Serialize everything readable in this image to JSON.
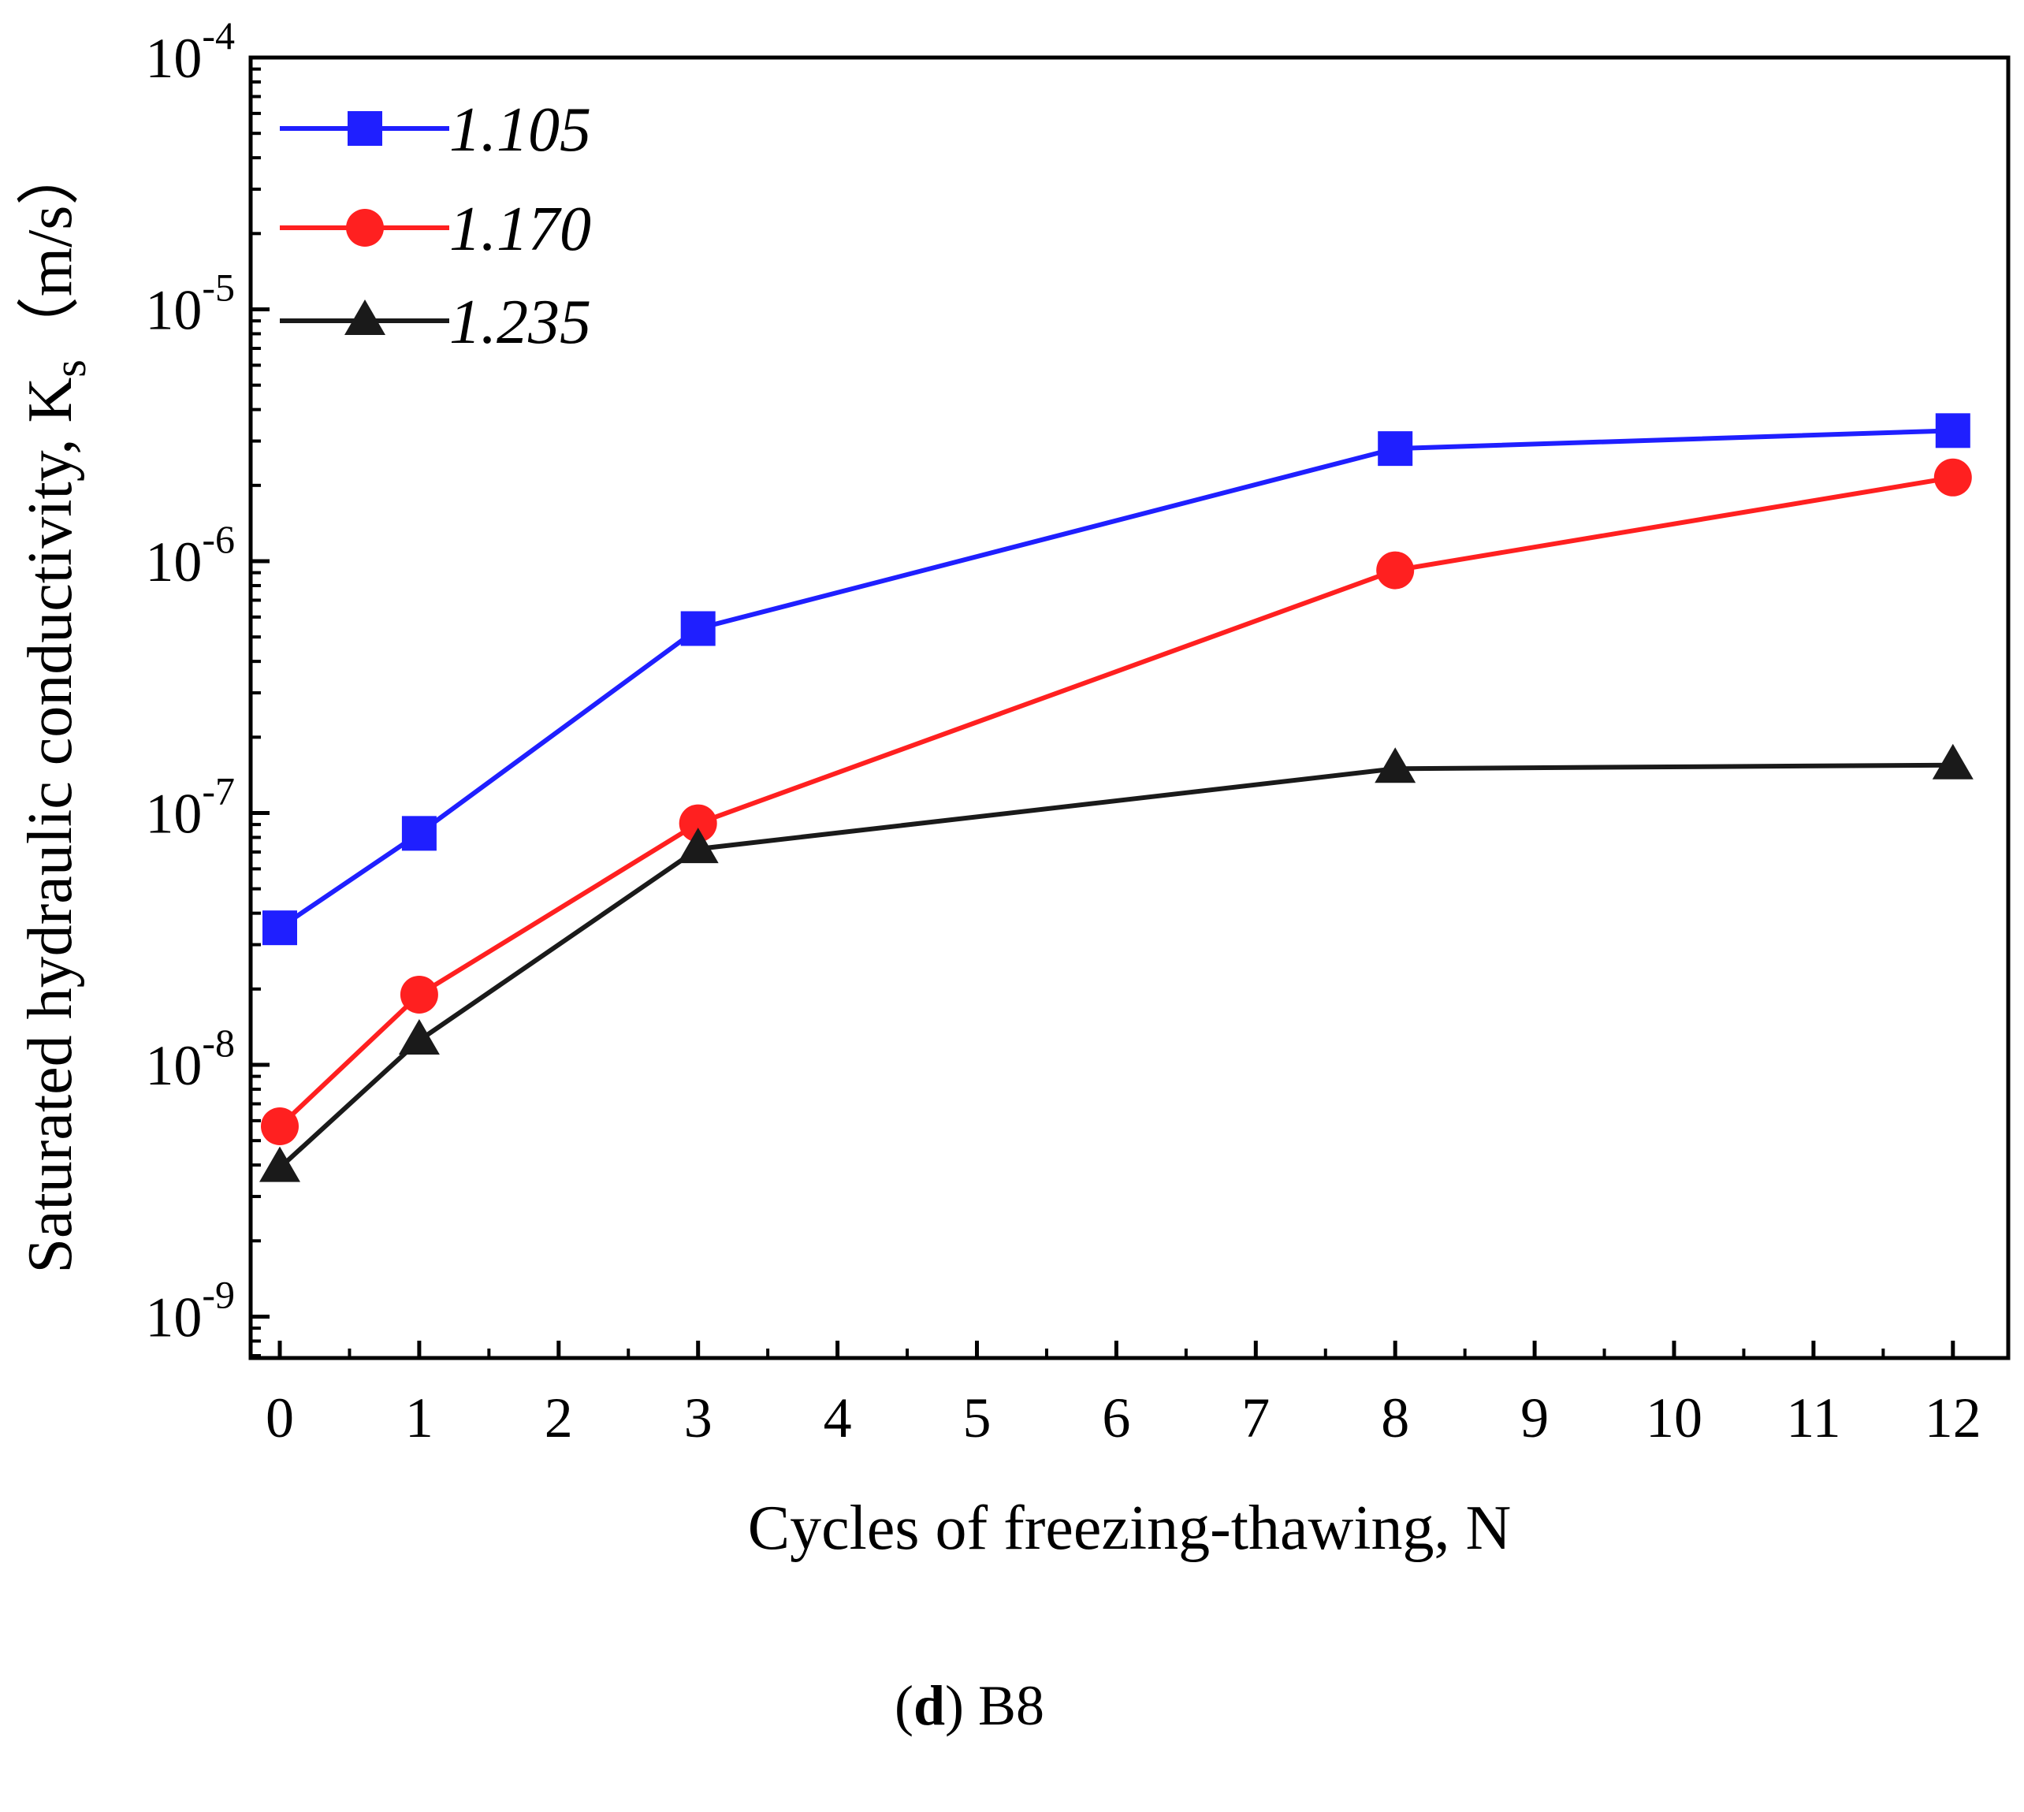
{
  "chart_data": {
    "type": "line",
    "x_scale": "categorical-equal-spacing",
    "y_scale": "log10",
    "xlabel": "Cycles of freezing-thawing, N",
    "ylabel_main": "Saturated hydraulic conductivity, K",
    "ylabel_sub": "s",
    "ylabel_unit": "（m/s）",
    "x_ticks": [
      "0",
      "1",
      "2",
      "3",
      "4",
      "5",
      "6",
      "7",
      "8",
      "9",
      "10",
      "11",
      "12"
    ],
    "y_ticks": [
      {
        "base": "10",
        "exp": "-9"
      },
      {
        "base": "10",
        "exp": "-8"
      },
      {
        "base": "10",
        "exp": "-7"
      },
      {
        "base": "10",
        "exp": "-6"
      },
      {
        "base": "10",
        "exp": "-5"
      },
      {
        "base": "10",
        "exp": "-4"
      }
    ],
    "ylim_exponent": [
      -9.15,
      -4
    ],
    "series": [
      {
        "name": "1.105",
        "color": "#1f1fff",
        "marker": "square",
        "points": [
          {
            "x": 0,
            "y": 3.5e-08
          },
          {
            "x": 1,
            "y": 8.3e-08
          },
          {
            "x": 3,
            "y": 5.4e-07
          },
          {
            "x": 8,
            "y": 2.8e-06
          },
          {
            "x": 12,
            "y": 3.3e-06
          }
        ]
      },
      {
        "name": "1.170",
        "color": "#ff2020",
        "marker": "circle",
        "points": [
          {
            "x": 0,
            "y": 5.7e-09
          },
          {
            "x": 1,
            "y": 1.9e-08
          },
          {
            "x": 3,
            "y": 9.1e-08
          },
          {
            "x": 8,
            "y": 9.2e-07
          },
          {
            "x": 12,
            "y": 2.15e-06
          }
        ]
      },
      {
        "name": "1.235",
        "color": "#1a1a1a",
        "marker": "triangle",
        "points": [
          {
            "x": 0,
            "y": 3.9e-09
          },
          {
            "x": 1,
            "y": 1.25e-08
          },
          {
            "x": 3,
            "y": 7.2e-08
          },
          {
            "x": 8,
            "y": 1.5e-07
          },
          {
            "x": 12,
            "y": 1.55e-07
          }
        ]
      }
    ],
    "legend": {
      "position": "top-left"
    }
  },
  "caption": {
    "open": "(",
    "letter": "d",
    "close": ")",
    "text": " B8"
  }
}
